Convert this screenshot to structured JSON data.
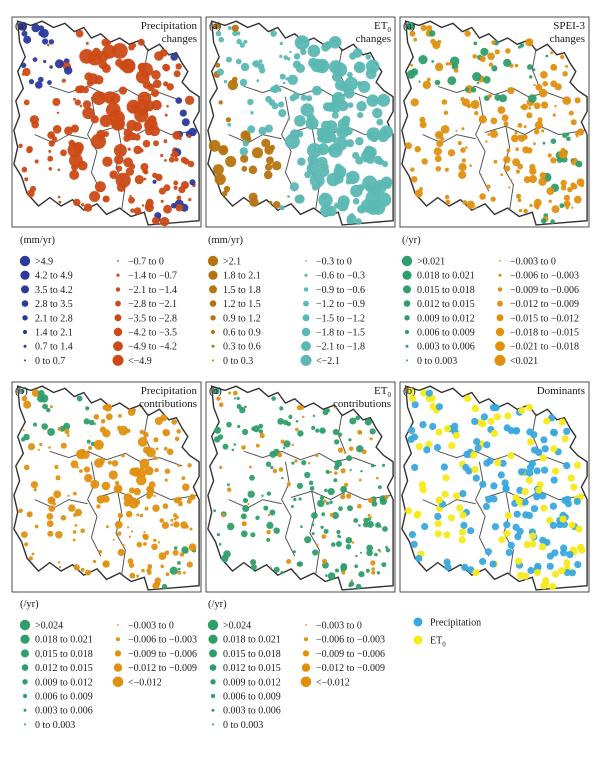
{
  "colors": {
    "precip_neg": "#cc4a16",
    "precip_pos": "#2b3a9c",
    "teal": "#5bb8b3",
    "brown": "#b5740f",
    "green": "#2e9e6a",
    "orange": "#e0900f",
    "blue": "#3aa8dd",
    "yellow": "#f5ea1a",
    "border": "#333333"
  },
  "chart_data": [
    {
      "type": "scatter",
      "panel": "a1",
      "label": "(a)",
      "title": [
        "Precipitation",
        "changes"
      ],
      "unit": "(mm/yr)",
      "legend_left": [
        ">4.9",
        "4.2 to 4.9",
        "3.5 to 4.2",
        "2.8 to 3.5",
        "2.1 to 2.8",
        "1.4 to 2.1",
        "0.7 to 1.4",
        "0 to 0.7"
      ],
      "legend_right": [
        "−0.7 to 0",
        "−1.4 to −0.7",
        "−2.1 to −1.4",
        "−2.8 to −2.1",
        "−3.5 to −2.8",
        "−4.2 to −3.5",
        "−4.9 to −4.2",
        "<−4.9"
      ],
      "legend_left_color": "precip_pos",
      "legend_right_color": "precip_neg",
      "scheme": "precip"
    },
    {
      "type": "scatter",
      "panel": "a2",
      "label": "(a)",
      "title": [
        "ET0",
        "changes"
      ],
      "unit": "(mm/yr)",
      "legend_left": [
        ">2.1",
        "1.8 to 2.1",
        "1.5 to 1.8",
        "1.2 to 1.5",
        "0.9 to 1.2",
        "0.6 to 0.9",
        "0.3 to 0.6",
        "0 to 0.3"
      ],
      "legend_right": [
        "−0.3 to 0",
        "−0.6 to −0.3",
        "−0.9 to −0.6",
        "−1.2 to −0.9",
        "−1.5 to −1.2",
        "−1.8 to −1.5",
        "−2.1 to −1.8",
        "<−2.1"
      ],
      "legend_left_color": "brown",
      "legend_right_color": "teal",
      "scheme": "et0"
    },
    {
      "type": "scatter",
      "panel": "a3",
      "label": "(a)",
      "title": [
        "SPEI-3",
        "changes"
      ],
      "unit": "(/yr)",
      "legend_left": [
        ">0.021",
        "0.018 to 0.021",
        "0.015 to 0.018",
        "0.012 to 0.015",
        "0.009 to 0.012",
        "0.006 to 0.009",
        "0.003 to 0.006",
        "0 to 0.003"
      ],
      "legend_right": [
        "−0.003 to 0",
        "−0.006 to −0.003",
        "−0.009 to −0.006",
        "−0.012 to −0.009",
        "−0.015 to −0.012",
        "−0.018 to −0.015",
        "−0.021 to −0.018",
        "<0.021"
      ],
      "legend_left_color": "green",
      "legend_right_color": "orange",
      "scheme": "spei"
    },
    {
      "type": "scatter",
      "panel": "b1",
      "label": "(b)",
      "title": [
        "Precipitation",
        "contributions"
      ],
      "unit": "(/yr)",
      "legend_left": [
        ">0.024",
        "0.018 to 0.021",
        "0.015 to 0.018",
        "0.012 to 0.015",
        "0.009 to 0.012",
        "0.006 to 0.009",
        "0.003 to 0.006",
        "0 to 0.003"
      ],
      "legend_right": [
        "−0.003 to 0",
        "−0.006 to −0.003",
        "−0.009 to −0.006",
        "−0.012 to −0.009",
        "<−0.012"
      ],
      "legend_left_color": "green",
      "legend_right_color": "orange",
      "scheme": "pcon"
    },
    {
      "type": "scatter",
      "panel": "b2",
      "label": "(b)",
      "title": [
        "ET0",
        "contributions"
      ],
      "unit": "(/yr)",
      "legend_left": [
        ">0.024",
        "0.018 to 0.021",
        "0.015 to 0.018",
        "0.012 to 0.015",
        "0.009 to 0.012",
        "0.006 to 0.009",
        "0.003 to 0.006",
        "0 to 0.003"
      ],
      "legend_right": [
        "−0.003 to 0",
        "−0.006 to −0.003",
        "−0.009 to −0.006",
        "−0.012 to −0.009",
        "<−0.012"
      ],
      "legend_left_color": "green",
      "legend_right_color": "orange",
      "scheme": "econ"
    },
    {
      "type": "scatter",
      "panel": "b3",
      "label": "(b)",
      "title": [
        "Dominants"
      ],
      "unit": "",
      "legend_left": [
        "Precipitation",
        "ET0"
      ],
      "legend_left_colors": [
        "blue",
        "yellow"
      ],
      "scheme": "dom"
    }
  ]
}
